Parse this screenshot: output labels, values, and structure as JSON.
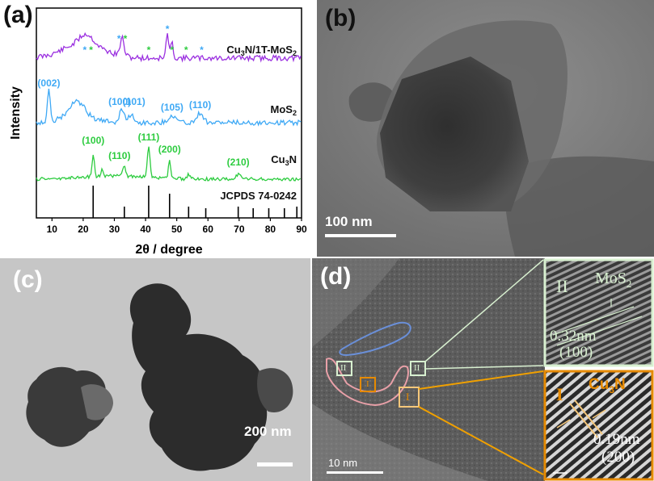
{
  "panels": {
    "a": {
      "label": "(a)",
      "chart_data": {
        "type": "line",
        "xlabel": "2θ / degree",
        "ylabel": "Intensity",
        "xlim": [
          5,
          90
        ],
        "xticks": [
          10,
          20,
          30,
          40,
          50,
          60,
          70,
          80,
          90
        ],
        "series": [
          {
            "name": "Cu3N/1T-MoS2",
            "name_parts": [
              "Cu",
              "3",
              "N/1T-MoS",
              "2"
            ],
            "color": "#9b30e0",
            "peaks_x": [
              21,
              32.5,
              47,
              48.5
            ],
            "markers": [
              {
                "x": 20.5,
                "symbol": "*",
                "color": "#3fa9f5"
              },
              {
                "x": 22.5,
                "symbol": "*",
                "color": "#2ecc40"
              },
              {
                "x": 31.5,
                "symbol": "*",
                "color": "#3fa9f5"
              },
              {
                "x": 33.5,
                "symbol": "*",
                "color": "#2ecc40"
              },
              {
                "x": 41,
                "symbol": "*",
                "color": "#2ecc40"
              },
              {
                "x": 47,
                "symbol": "*",
                "color": "#3fa9f5"
              },
              {
                "x": 48.5,
                "symbol": "*",
                "color": "#2ecc40"
              },
              {
                "x": 53,
                "symbol": "*",
                "color": "#2ecc40"
              },
              {
                "x": 58,
                "symbol": "*",
                "color": "#3fa9f5"
              }
            ]
          },
          {
            "name": "MoS2",
            "name_parts": [
              "MoS",
              "2"
            ],
            "color": "#3fa9f5",
            "peaks": [
              {
                "x": 9,
                "label": "(002)"
              },
              {
                "x": 32.5,
                "label": "(100)"
              },
              {
                "x": 35.5,
                "label": "(101)"
              },
              {
                "x": 48.5,
                "label": "(105)"
              },
              {
                "x": 57.5,
                "label": "(110)"
              }
            ]
          },
          {
            "name": "Cu3N",
            "name_parts": [
              "Cu",
              "3",
              "N"
            ],
            "color": "#2ecc40",
            "peaks": [
              {
                "x": 23.2,
                "label": "(100)"
              },
              {
                "x": 33.2,
                "label": "(110)"
              },
              {
                "x": 41,
                "label": "(111)"
              },
              {
                "x": 47.7,
                "label": "(200)"
              },
              {
                "x": 69.7,
                "label": "(210)"
              }
            ]
          }
        ],
        "reference": {
          "name": "JCPDS 74-0242",
          "color": "#000000",
          "lines": [
            {
              "x": 23.2,
              "h": 1.0
            },
            {
              "x": 33.2,
              "h": 0.35
            },
            {
              "x": 41,
              "h": 1.0
            },
            {
              "x": 47.7,
              "h": 0.75
            },
            {
              "x": 53.8,
              "h": 0.35
            },
            {
              "x": 59.3,
              "h": 0.3
            },
            {
              "x": 69.7,
              "h": 0.35
            },
            {
              "x": 74.5,
              "h": 0.3
            },
            {
              "x": 79.5,
              "h": 0.3
            },
            {
              "x": 84.5,
              "h": 0.3
            },
            {
              "x": 88.5,
              "h": 0.35
            }
          ]
        }
      }
    },
    "b": {
      "label": "(b)",
      "scale_bar": "100 nm"
    },
    "c": {
      "label": "(c)",
      "scale_bar": "200 nm"
    },
    "d": {
      "label": "(d)",
      "scale_bar": "10 nm",
      "regions": [
        "I",
        "II"
      ],
      "inset_top": {
        "region": "II",
        "material": "MoS",
        "material_sub": "2",
        "spacing": "0.32nm",
        "plane": "(100)"
      },
      "inset_bottom": {
        "region": "I",
        "material": "Cu",
        "material_sub": "3",
        "material_tail": "N",
        "spacing": "0.19nm",
        "plane": "(200)"
      }
    },
    "colors": {
      "orange": "#e68a00",
      "pink": "#e8a0a8",
      "blue": "#6a8fd8",
      "mint": "#d8f0d0"
    }
  }
}
